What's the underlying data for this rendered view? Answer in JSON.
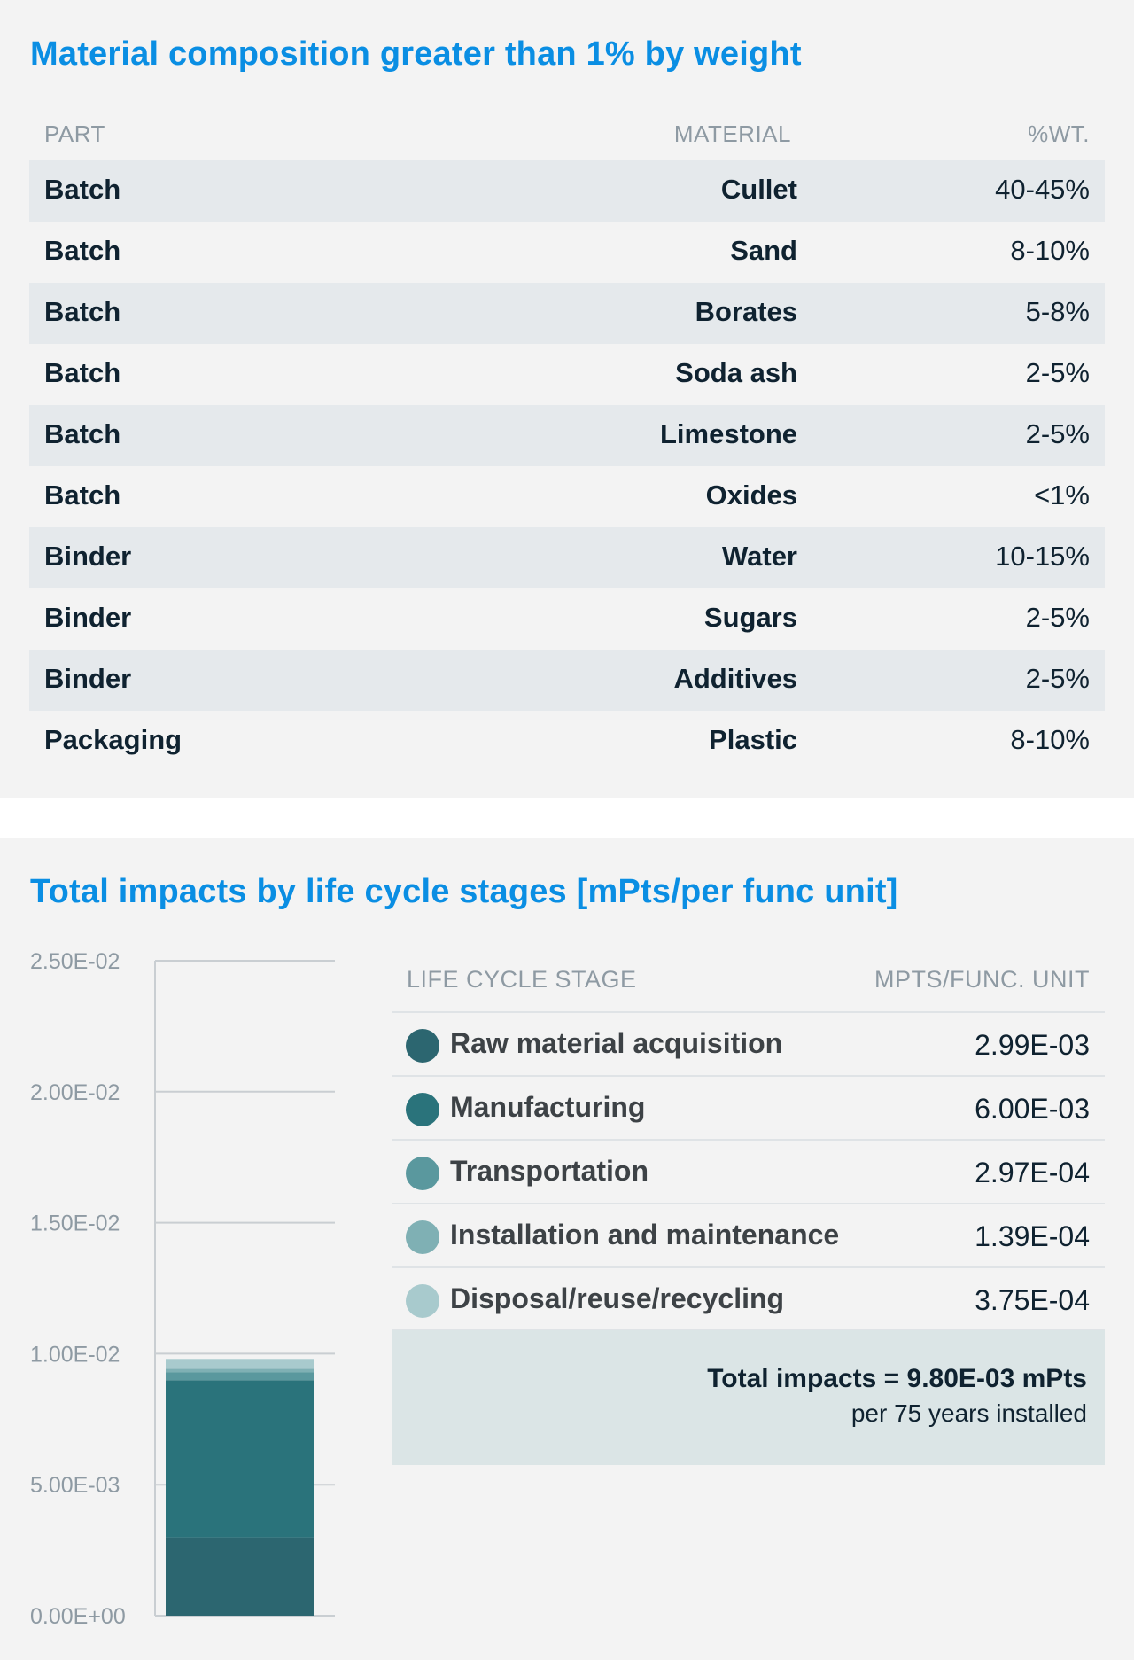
{
  "composition": {
    "title": "Material composition greater than 1% by weight",
    "headers": {
      "part": "PART",
      "material": "MATERIAL",
      "wt": "%WT."
    },
    "rows": [
      {
        "part": "Batch",
        "material": "Cullet",
        "wt": "40-45%"
      },
      {
        "part": "Batch",
        "material": "Sand",
        "wt": "8-10%"
      },
      {
        "part": "Batch",
        "material": "Borates",
        "wt": "5-8%"
      },
      {
        "part": "Batch",
        "material": "Soda ash",
        "wt": "2-5%"
      },
      {
        "part": "Batch",
        "material": "Limestone",
        "wt": "2-5%"
      },
      {
        "part": "Batch",
        "material": "Oxides",
        "wt": "<1%"
      },
      {
        "part": "Binder",
        "material": "Water",
        "wt": "10-15%"
      },
      {
        "part": "Binder",
        "material": "Sugars",
        "wt": "2-5%"
      },
      {
        "part": "Binder",
        "material": "Additives",
        "wt": "2-5%"
      },
      {
        "part": "Packaging",
        "material": "Plastic",
        "wt": "8-10%"
      }
    ]
  },
  "impacts": {
    "title": "Total impacts by life cycle stages [mPts/per func unit]",
    "headers": {
      "stage": "LIFE CYCLE STAGE",
      "unit": "MPTS/FUNC. UNIT"
    },
    "total_line": "Total impacts = 9.80E-03 mPts",
    "total_sub": "per 75 years installed"
  },
  "chart_data": {
    "type": "bar",
    "stacked": true,
    "categories": [
      ""
    ],
    "ylim": [
      0,
      0.025
    ],
    "yticks": [
      0,
      0.005,
      0.01,
      0.015,
      0.02,
      0.025
    ],
    "ytick_labels": [
      "0.00E+00",
      "5.00E-03",
      "1.00E-02",
      "1.50E-02",
      "2.00E-02",
      "2.50E-02"
    ],
    "grid": true,
    "series": [
      {
        "name": "Raw material acquisition",
        "values": [
          0.00299
        ],
        "label": "2.99E-03",
        "color": "#2c6670"
      },
      {
        "name": "Manufacturing",
        "values": [
          0.006
        ],
        "label": "6.00E-03",
        "color": "#2a737b"
      },
      {
        "name": "Transportation",
        "values": [
          0.000297
        ],
        "label": "2.97E-04",
        "color": "#5a989e"
      },
      {
        "name": "Installation and maintenance",
        "values": [
          0.000139
        ],
        "label": "1.39E-04",
        "color": "#7fb0b4"
      },
      {
        "name": "Disposal/reuse/recycling",
        "values": [
          0.000375
        ],
        "label": "3.75E-04",
        "color": "#a8cacd"
      }
    ]
  }
}
